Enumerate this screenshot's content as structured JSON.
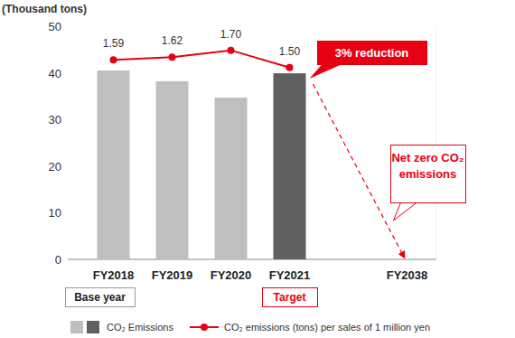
{
  "chart_data": {
    "type": "bar",
    "y_label": "(Thousand tons)",
    "categories": [
      "FY2018",
      "FY2019",
      "FY2020",
      "FY2021",
      null,
      "FY2038"
    ],
    "series": [
      {
        "name": "CO₂ Emissions",
        "type": "bar",
        "values": [
          40.5,
          38.2,
          34.7,
          39.9,
          null,
          null
        ],
        "colors": [
          "#bfbfbf",
          "#bfbfbf",
          "#bfbfbf",
          "#606060",
          null,
          null
        ]
      },
      {
        "name": "CO₂ emissions (tons) per sales of 1 million yen",
        "type": "line",
        "axis": "y2",
        "color": "#e60012",
        "marker": "circle",
        "data_labels": true,
        "values": [
          1.59,
          1.62,
          1.7,
          1.5,
          null,
          null
        ],
        "value_labels": [
          "1.59",
          "1.62",
          "1.70",
          "1.50",
          null,
          null
        ]
      }
    ],
    "ylim": [
      0,
      50
    ],
    "yticks": [
      0,
      10,
      20,
      30,
      40,
      50
    ],
    "y2lim": [
      -0.73,
      1.98
    ],
    "grid": false,
    "annotations": [
      {
        "text": "3% reduction",
        "category": "FY2021"
      },
      {
        "text": "Net zero CO₂ emissions",
        "category": "FY2038"
      },
      {
        "text": "Base year",
        "category": "FY2018"
      },
      {
        "text": "Target",
        "category": "FY2021"
      }
    ]
  }
}
